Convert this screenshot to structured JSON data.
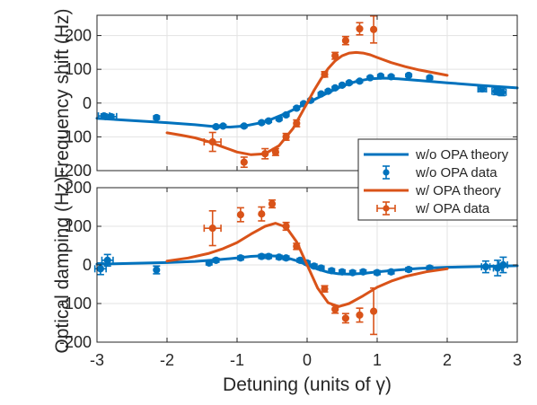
{
  "chart_data": [
    {
      "type": "line",
      "panel": "top",
      "ylabel": "Frequency shift (Hz)",
      "xlabel": "",
      "xlim": [
        -3,
        3
      ],
      "ylim": [
        -200,
        260
      ],
      "yticks": [
        "-200",
        "-100",
        "0",
        "100",
        "200"
      ],
      "xticks": [],
      "grid": true,
      "series": [
        {
          "name": "w/o OPA theory",
          "kind": "line",
          "color": "#0072BD",
          "x": [
            -3.0,
            -2.5,
            -2.0,
            -1.6,
            -1.3,
            -1.1,
            -0.9,
            -0.7,
            -0.5,
            -0.3,
            -0.1,
            0.0,
            0.1,
            0.3,
            0.5,
            0.7,
            0.9,
            1.1,
            1.3,
            1.6,
            2.0,
            2.5,
            3.0
          ],
          "y": [
            -45,
            -52,
            -58,
            -64,
            -70,
            -71,
            -68,
            -60,
            -47,
            -30,
            -10,
            0,
            10,
            31,
            50,
            64,
            72,
            74,
            72,
            67,
            60,
            52,
            45
          ]
        },
        {
          "name": "w/o OPA data",
          "kind": "errorbar",
          "color": "#0072BD",
          "x": [
            -2.9,
            -2.8,
            -2.15,
            -1.3,
            -1.2,
            -0.9,
            -0.65,
            -0.55,
            -0.4,
            -0.3,
            -0.15,
            -0.05,
            0.05,
            0.2,
            0.3,
            0.4,
            0.5,
            0.6,
            0.75,
            0.9,
            1.05,
            1.2,
            1.45,
            1.75,
            2.5,
            2.7,
            2.78
          ],
          "y": [
            -38,
            -40,
            -43,
            -70,
            -68,
            -68,
            -58,
            -53,
            -47,
            -35,
            -15,
            -2,
            8,
            27,
            35,
            45,
            53,
            60,
            65,
            75,
            80,
            78,
            82,
            75,
            42,
            35,
            32
          ],
          "yerr": [
            6,
            6,
            5,
            4,
            4,
            4,
            4,
            4,
            4,
            4,
            4,
            4,
            4,
            4,
            4,
            4,
            4,
            4,
            4,
            4,
            4,
            4,
            4,
            4,
            8,
            10,
            10
          ],
          "xerr": [
            0.08,
            0.08,
            0,
            0,
            0,
            0,
            0,
            0,
            0,
            0,
            0,
            0,
            0,
            0,
            0,
            0,
            0,
            0,
            0,
            0,
            0,
            0,
            0,
            0,
            0.06,
            0.06,
            0.06
          ]
        },
        {
          "name": "w/ OPA theory",
          "kind": "line",
          "color": "#D95319",
          "x": [
            -2.0,
            -1.8,
            -1.6,
            -1.4,
            -1.2,
            -1.0,
            -0.8,
            -0.6,
            -0.4,
            -0.2,
            0.0,
            0.1,
            0.2,
            0.3,
            0.4,
            0.5,
            0.6,
            0.7,
            0.8,
            0.9,
            1.0,
            1.2,
            1.4,
            1.6,
            1.8,
            2.0
          ],
          "y": [
            -88,
            -95,
            -103,
            -115,
            -130,
            -145,
            -153,
            -150,
            -126,
            -75,
            0,
            38,
            72,
            102,
            125,
            140,
            148,
            150,
            148,
            143,
            135,
            120,
            108,
            98,
            90,
            82
          ]
        },
        {
          "name": "w/ OPA data",
          "kind": "errorbar",
          "color": "#D95319",
          "x": [
            -1.35,
            -0.9,
            -0.6,
            -0.45,
            -0.3,
            -0.15,
            0.25,
            0.4,
            0.55,
            0.75,
            0.95
          ],
          "y": [
            -115,
            -175,
            -150,
            -145,
            -100,
            -60,
            85,
            140,
            185,
            220,
            218
          ],
          "yerr": [
            28,
            15,
            15,
            10,
            10,
            10,
            8,
            10,
            12,
            18,
            40
          ],
          "xerr": [
            0.12,
            0,
            0,
            0,
            0,
            0,
            0,
            0,
            0,
            0,
            0
          ]
        }
      ]
    },
    {
      "type": "line",
      "panel": "bottom",
      "ylabel": "Optical damping (Hz)",
      "xlabel": "Detuning (units of γ)",
      "xlim": [
        -3,
        3
      ],
      "ylim": [
        -200,
        200
      ],
      "yticks": [
        "-200",
        "-100",
        "0",
        "100",
        "200"
      ],
      "xticks": [
        "-3",
        "-2",
        "-1",
        "0",
        "1",
        "2",
        "3"
      ],
      "grid": true,
      "series": [
        {
          "name": "w/o OPA theory",
          "kind": "line",
          "color": "#0072BD",
          "x": [
            -3.0,
            -2.5,
            -2.0,
            -1.6,
            -1.3,
            -1.0,
            -0.8,
            -0.6,
            -0.45,
            -0.3,
            -0.15,
            0.0,
            0.15,
            0.3,
            0.45,
            0.6,
            0.8,
            1.0,
            1.3,
            1.6,
            2.0,
            2.5,
            3.0
          ],
          "y": [
            2,
            4,
            6,
            9,
            13,
            18,
            22,
            24,
            23,
            19,
            11,
            0,
            -11,
            -19,
            -23,
            -24,
            -22,
            -18,
            -13,
            -9,
            -6,
            -4,
            -2
          ]
        },
        {
          "name": "w/o OPA data",
          "kind": "errorbar",
          "color": "#0072BD",
          "x": [
            -2.95,
            -2.85,
            -2.15,
            -1.4,
            -1.3,
            -0.95,
            -0.65,
            -0.55,
            -0.4,
            -0.3,
            -0.1,
            0.0,
            0.1,
            0.2,
            0.35,
            0.5,
            0.65,
            0.8,
            1.0,
            1.2,
            1.45,
            1.75,
            2.55,
            2.72,
            2.8
          ],
          "y": [
            -10,
            12,
            -13,
            5,
            12,
            18,
            22,
            22,
            20,
            18,
            12,
            5,
            -3,
            -8,
            -15,
            -18,
            -20,
            -18,
            -20,
            -18,
            -12,
            -8,
            -5,
            -8,
            0
          ],
          "yerr": [
            15,
            15,
            10,
            5,
            5,
            5,
            5,
            5,
            5,
            5,
            5,
            5,
            5,
            5,
            5,
            5,
            5,
            5,
            5,
            5,
            5,
            5,
            15,
            20,
            20
          ],
          "xerr": [
            0.08,
            0.08,
            0,
            0,
            0,
            0,
            0,
            0,
            0,
            0,
            0,
            0,
            0,
            0,
            0,
            0,
            0,
            0,
            0,
            0,
            0,
            0,
            0.06,
            0.06,
            0.06
          ]
        },
        {
          "name": "w/ OPA theory",
          "kind": "line",
          "color": "#D95319",
          "x": [
            -2.0,
            -1.7,
            -1.4,
            -1.2,
            -1.0,
            -0.8,
            -0.6,
            -0.45,
            -0.3,
            -0.15,
            0.0,
            0.15,
            0.3,
            0.45,
            0.6,
            0.8,
            1.0,
            1.2,
            1.4,
            1.7,
            2.0
          ],
          "y": [
            10,
            18,
            30,
            42,
            58,
            80,
            100,
            108,
            98,
            60,
            0,
            -60,
            -98,
            -108,
            -100,
            -80,
            -58,
            -42,
            -30,
            -18,
            -10
          ]
        },
        {
          "name": "w/ OPA data",
          "kind": "errorbar",
          "color": "#D95319",
          "x": [
            -1.35,
            -0.95,
            -0.65,
            -0.5,
            -0.3,
            -0.15,
            0.25,
            0.4,
            0.55,
            0.75,
            0.95
          ],
          "y": [
            95,
            130,
            132,
            158,
            100,
            48,
            -62,
            -115,
            -138,
            -130,
            -120
          ],
          "yerr": [
            45,
            18,
            18,
            10,
            10,
            8,
            8,
            10,
            12,
            18,
            60
          ],
          "xerr": [
            0.12,
            0,
            0,
            0,
            0,
            0,
            0,
            0,
            0,
            0,
            0
          ]
        }
      ]
    }
  ],
  "legend": {
    "placement": "right, between panels",
    "entries": [
      "w/o OPA theory",
      "w/o OPA data",
      "w/ OPA theory",
      "w/ OPA data"
    ]
  }
}
